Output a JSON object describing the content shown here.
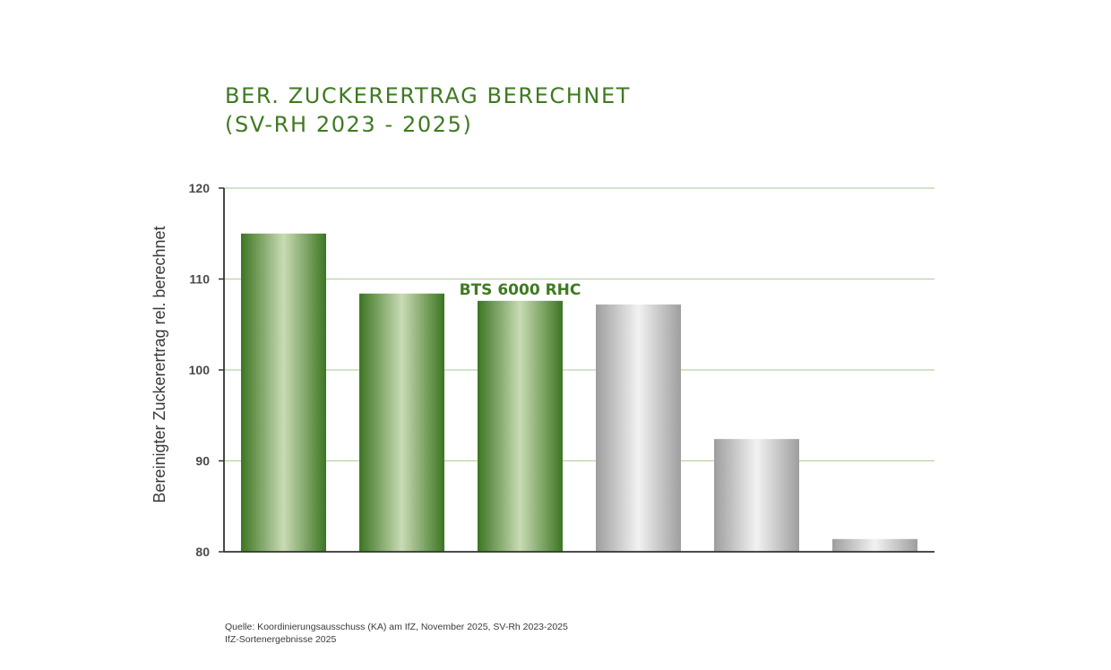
{
  "chart_data": {
    "type": "bar",
    "title_lines": [
      "BER. ZUCKERERTRAG BERECHNET",
      "(SV-RH 2023 - 2025)"
    ],
    "ylabel": "Bereinigter Zuckerertrag rel. berechnet",
    "xlabel": "",
    "ylim": [
      80,
      120
    ],
    "yticks": [
      80,
      90,
      100,
      110,
      120
    ],
    "grid": true,
    "categories": [
      "",
      "",
      "",
      "",
      "",
      ""
    ],
    "values": [
      115.0,
      108.4,
      107.6,
      107.2,
      92.4,
      81.4
    ],
    "bar_colors": [
      "green",
      "green",
      "green",
      "gray",
      "gray",
      "gray"
    ],
    "annotations": [
      {
        "bar_index": 2,
        "text": "BTS 6000 RHC"
      }
    ]
  },
  "colors": {
    "title": "#3f7a22",
    "grid": "#b9d2a4",
    "axis": "#333333",
    "tick_label": "#4a4a4a",
    "annotation": "#3f7a22",
    "green_dark": "#3d7522",
    "green_light": "#c9dbb4",
    "gray_dark": "#9e9e9e",
    "gray_light": "#f2f2f2"
  },
  "source": {
    "line1": "Quelle: Koordinierungsausschuss (KA) am IfZ, November 2025, SV-Rh 2023-2025",
    "line2": "IfZ-Sortenergebnisse 2025"
  }
}
